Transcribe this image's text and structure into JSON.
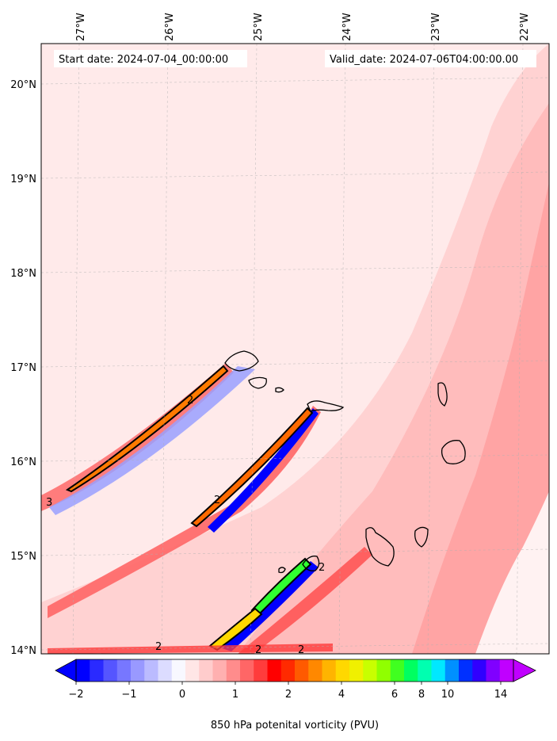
{
  "header": {
    "start_label": "Start date: 2024-07-04_00:00:00",
    "valid_label": "Valid_date: 2024-07-06T04:00:00.00"
  },
  "map": {
    "lon_labels": [
      "27°W",
      "26°W",
      "25°W",
      "24°W",
      "23°W",
      "22°W"
    ],
    "lat_labels": [
      "20°N",
      "19°N",
      "18°N",
      "17°N",
      "16°N",
      "15°N",
      "14°N"
    ],
    "contour_labels": [
      "2",
      "2",
      "3",
      "2",
      "2",
      "2",
      "2"
    ]
  },
  "colorbar": {
    "tick_labels": [
      "−2",
      "−1",
      "0",
      "1",
      "2",
      "4",
      "6",
      "8",
      "10",
      "14"
    ],
    "label": "850 hPa potenital vorticity (PVU)",
    "colors": [
      "#0000ff",
      "#2a2aff",
      "#5555ff",
      "#7777ff",
      "#9999ff",
      "#bbbbff",
      "#dcdcff",
      "#f8f8ff",
      "#ffe6e6",
      "#ffcccc",
      "#ffb0b0",
      "#ff8c8c",
      "#ff6666",
      "#ff3c3c",
      "#ff0000",
      "#ff2a00",
      "#ff5a00",
      "#ff8800",
      "#ffb400",
      "#ffd800",
      "#f0f000",
      "#c8ff00",
      "#90ff00",
      "#40ff20",
      "#00ff60",
      "#00ffb0",
      "#00e8ff",
      "#0090ff",
      "#0030ff",
      "#3000ff",
      "#8000ff",
      "#c000ff"
    ]
  }
}
